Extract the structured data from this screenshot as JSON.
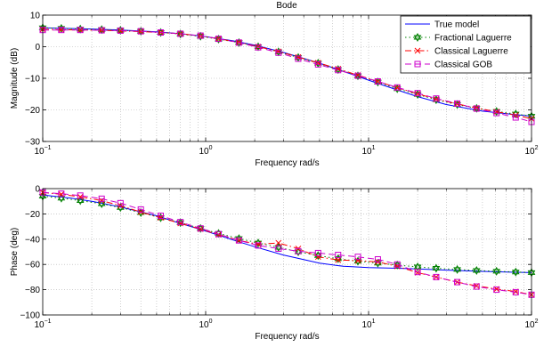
{
  "figure": {
    "title": "Bode"
  },
  "legend": {
    "placement": "top-right",
    "entries": [
      {
        "name": "True model",
        "color": "#0000ff",
        "style": "solid",
        "marker": "none"
      },
      {
        "name": "Fractional Laguerre",
        "color": "#008000",
        "style": "dotted",
        "marker": "hexagram"
      },
      {
        "name": "Classical Laguerre",
        "color": "#ff0000",
        "style": "dashdot",
        "marker": "x"
      },
      {
        "name": "Classical GOB",
        "color": "#cc00cc",
        "style": "dashed",
        "marker": "square"
      }
    ]
  },
  "chart_data": [
    {
      "type": "line",
      "id": "magnitude",
      "title": "Bode",
      "xlabel": "Frequency rad/s",
      "ylabel": "Magnitude (dB)",
      "xscale": "log",
      "xlim": [
        0.1,
        100
      ],
      "ylim": [
        -30,
        10
      ],
      "yticks": [
        -30,
        -20,
        -10,
        0,
        10
      ],
      "xticks": [
        {
          "base": "10",
          "exp": "−1"
        },
        {
          "base": "10",
          "exp": "0"
        },
        {
          "base": "10",
          "exp": "1"
        },
        {
          "base": "10",
          "exp": "2"
        }
      ],
      "grid": true,
      "series": [
        {
          "name": "True model",
          "x": [
            0.1,
            0.2,
            0.3,
            0.5,
            0.7,
            1,
            1.5,
            2,
            3,
            5,
            7,
            10,
            15,
            20,
            30,
            50,
            70,
            100
          ],
          "y": [
            6,
            5.6,
            5.3,
            4.7,
            4.1,
            3.2,
            1.8,
            0.5,
            -1.8,
            -5.2,
            -7.8,
            -10.6,
            -13.7,
            -15.8,
            -18.3,
            -20.4,
            -21.2,
            -22
          ]
        },
        {
          "name": "Fractional Laguerre",
          "x": [
            0.1,
            0.13,
            0.17,
            0.23,
            0.3,
            0.4,
            0.53,
            0.7,
            0.93,
            1.2,
            1.6,
            2.1,
            2.8,
            3.7,
            4.9,
            6.5,
            8.6,
            11.4,
            15,
            20,
            26,
            35,
            46,
            61,
            80,
            100
          ],
          "y": [
            6,
            5.8,
            5.6,
            5.4,
            5.2,
            4.9,
            4.5,
            4,
            3.3,
            2.4,
            1.3,
            0,
            -1.6,
            -3.4,
            -5.2,
            -7.2,
            -9.2,
            -11.2,
            -13.3,
            -15.1,
            -16.8,
            -18.3,
            -19.5,
            -20.5,
            -21.3,
            -22
          ]
        },
        {
          "name": "Classical Laguerre",
          "x": [
            0.1,
            0.13,
            0.17,
            0.23,
            0.3,
            0.4,
            0.53,
            0.7,
            0.93,
            1.2,
            1.6,
            2.1,
            2.8,
            3.7,
            4.9,
            6.5,
            8.6,
            11.4,
            15,
            20,
            26,
            35,
            46,
            61,
            80,
            100
          ],
          "y": [
            5.5,
            5.4,
            5.3,
            5.2,
            5,
            4.8,
            4.5,
            4.1,
            3.4,
            2.5,
            1.4,
            0,
            -1.5,
            -3.3,
            -5.1,
            -7,
            -9,
            -11,
            -13,
            -14.9,
            -16.6,
            -18.1,
            -19.4,
            -20.6,
            -21.7,
            -22.8
          ]
        },
        {
          "name": "Classical GOB",
          "x": [
            0.1,
            0.13,
            0.17,
            0.23,
            0.3,
            0.4,
            0.53,
            0.7,
            0.93,
            1.2,
            1.6,
            2.1,
            2.8,
            3.7,
            4.9,
            6.5,
            8.6,
            11.4,
            15,
            20,
            26,
            35,
            46,
            61,
            80,
            100
          ],
          "y": [
            5.3,
            5.3,
            5.3,
            5.2,
            5.1,
            4.9,
            4.5,
            4.1,
            3.5,
            2.5,
            1.3,
            -0.2,
            -1.9,
            -3.8,
            -5.6,
            -7.4,
            -9.2,
            -11,
            -12.9,
            -14.7,
            -16.4,
            -18,
            -19.6,
            -21,
            -22.4,
            -23.8
          ]
        }
      ]
    },
    {
      "type": "line",
      "id": "phase",
      "xlabel": "Frequency rad/s",
      "ylabel": "Phase (deg)",
      "xscale": "log",
      "xlim": [
        0.1,
        100
      ],
      "ylim": [
        -100,
        0
      ],
      "yticks": [
        -100,
        -80,
        -60,
        -40,
        -20,
        0
      ],
      "xticks": [
        {
          "base": "10",
          "exp": "−1"
        },
        {
          "base": "10",
          "exp": "0"
        },
        {
          "base": "10",
          "exp": "1"
        },
        {
          "base": "10",
          "exp": "2"
        }
      ],
      "grid": true,
      "series": [
        {
          "name": "True model",
          "x": [
            0.1,
            0.15,
            0.2,
            0.3,
            0.5,
            0.7,
            1,
            1.5,
            2,
            3,
            5,
            7,
            10,
            15,
            20,
            30,
            50,
            70,
            100
          ],
          "y": [
            -5,
            -7.5,
            -10,
            -14.5,
            -21.5,
            -27.5,
            -33.5,
            -41,
            -46,
            -52.5,
            -59,
            -61.5,
            -62.5,
            -63,
            -63.5,
            -64.5,
            -65.5,
            -66,
            -66.5
          ]
        },
        {
          "name": "Fractional Laguerre",
          "x": [
            0.1,
            0.13,
            0.17,
            0.23,
            0.3,
            0.4,
            0.53,
            0.7,
            0.93,
            1.2,
            1.6,
            2.1,
            2.8,
            3.7,
            4.9,
            6.5,
            8.6,
            11.4,
            15,
            20,
            26,
            35,
            46,
            61,
            80,
            100
          ],
          "y": [
            -6,
            -7.5,
            -9.5,
            -12,
            -15,
            -19,
            -23,
            -27,
            -31.5,
            -35.5,
            -39.5,
            -43,
            -46.5,
            -50,
            -53,
            -55.5,
            -57.5,
            -59,
            -60.5,
            -62,
            -63,
            -64,
            -64.8,
            -65.4,
            -66,
            -66.5
          ]
        },
        {
          "name": "Classical Laguerre",
          "x": [
            0.1,
            0.13,
            0.17,
            0.23,
            0.3,
            0.4,
            0.53,
            0.7,
            0.93,
            1.2,
            1.6,
            2.1,
            2.8,
            3.7,
            4.9,
            6.5,
            8.6,
            11.4,
            15,
            20,
            26,
            35,
            46,
            61,
            80,
            100
          ],
          "y": [
            -3,
            -4.5,
            -6.5,
            -9.5,
            -13.5,
            -18.5,
            -23,
            -27.5,
            -32,
            -36.5,
            -41,
            -44,
            -43,
            -47.5,
            -54,
            -56.5,
            -57,
            -58,
            -61.5,
            -66.5,
            -70,
            -74,
            -77,
            -79.5,
            -81.5,
            -84
          ]
        },
        {
          "name": "Classical GOB",
          "x": [
            0.1,
            0.13,
            0.17,
            0.23,
            0.3,
            0.4,
            0.53,
            0.7,
            0.93,
            1.2,
            1.6,
            2.1,
            2.8,
            3.7,
            4.9,
            6.5,
            8.6,
            11.4,
            15,
            20,
            26,
            35,
            46,
            61,
            80,
            100
          ],
          "y": [
            -3,
            -4,
            -5.5,
            -8,
            -11.5,
            -16.5,
            -21.5,
            -26.5,
            -31.5,
            -36,
            -41,
            -45,
            -47.5,
            -49.5,
            -51,
            -52.5,
            -54,
            -56,
            -60,
            -66,
            -70,
            -74,
            -77.5,
            -80,
            -82,
            -84
          ]
        }
      ]
    }
  ]
}
